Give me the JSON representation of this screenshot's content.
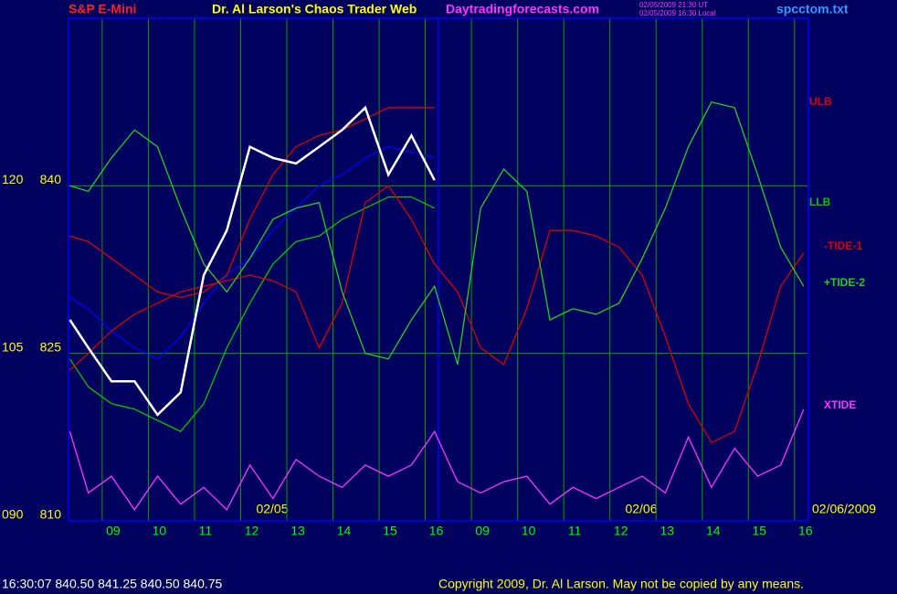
{
  "chart_data": {
    "type": "line",
    "title": "Dr. Al Larson's Chaos Trader Web",
    "instrument": "S&P E-Mini",
    "site": "Daytradingforecasts.com",
    "timestamp_ut": "02/05/2009 21:30 UT",
    "timestamp_local": "02/05/2009 16:30 Local",
    "file": "spcctom.txt",
    "quote_line": "16:30:07  840.50 841.25 840.50 840.75",
    "copyright": "Copyright 2009, Dr. Al Larson. May not be copied by any means.",
    "date_labels": [
      "02/05",
      "02/06",
      "02/06/2009"
    ],
    "background": "#00005e",
    "axis_color": "#0000ff",
    "grid_color": "#00a000",
    "tick_color": "#ffff00",
    "xtick_color": "#00ff00",
    "grid": true,
    "x": [
      0.1,
      0.5,
      1,
      1.5,
      2,
      2.5,
      3,
      3.5,
      4,
      4.5,
      5,
      5.5,
      6,
      6.5,
      7,
      7.5,
      8,
      8.5,
      9,
      9.5,
      10,
      10.5,
      11,
      11.5,
      12,
      12.5,
      13,
      13.5,
      14,
      14.5,
      15,
      15.5,
      16
    ],
    "xlim": [
      0.07,
      16.1
    ],
    "xticks": [
      {
        "value": 0.8,
        "label": "09"
      },
      {
        "value": 1.8,
        "label": "10"
      },
      {
        "value": 2.8,
        "label": "11"
      },
      {
        "value": 3.8,
        "label": "12"
      },
      {
        "value": 4.8,
        "label": "13"
      },
      {
        "value": 5.8,
        "label": "14"
      },
      {
        "value": 6.8,
        "label": "15"
      },
      {
        "value": 7.8,
        "label": "16"
      },
      {
        "value": 8.8,
        "label": "09"
      },
      {
        "value": 9.8,
        "label": "10"
      },
      {
        "value": 10.8,
        "label": "11"
      },
      {
        "value": 11.8,
        "label": "12"
      },
      {
        "value": 12.8,
        "label": "13"
      },
      {
        "value": 13.8,
        "label": "14"
      },
      {
        "value": 14.8,
        "label": "15"
      },
      {
        "value": 15.8,
        "label": "16"
      }
    ],
    "ylim": [
      810,
      855
    ],
    "yticks": [
      810,
      825,
      840
    ],
    "y2lim": [
      90,
      135
    ],
    "y2ticks": [
      {
        "value": 90,
        "label": "090"
      },
      105,
      120
    ],
    "series": [
      {
        "color": "#0000ff",
        "values": [
          830,
          829,
          827,
          825.5,
          824.5,
          826.5,
          829.5,
          832,
          833.5,
          836,
          838,
          840,
          841,
          842.5,
          843.5,
          843,
          842.5,
          null,
          null,
          null,
          null,
          null,
          null,
          null,
          null,
          null,
          null,
          null,
          null,
          null,
          null,
          null,
          null
        ]
      },
      {
        "name": "ULB",
        "color": "#e00000",
        "values": [
          835.5,
          835,
          833.5,
          832,
          830.5,
          830,
          830.5,
          832,
          837,
          841,
          843.5,
          844.5,
          845,
          846,
          847,
          847,
          847,
          null,
          null,
          null,
          null,
          null,
          null,
          null,
          null,
          null,
          null,
          null,
          null,
          null,
          null,
          null,
          null
        ]
      },
      {
        "name": "LLB",
        "color": "#00c800",
        "values": [
          824.5,
          822,
          820.5,
          820,
          819,
          818,
          820.5,
          825.5,
          829.5,
          833,
          835,
          835.5,
          837,
          838,
          839,
          839,
          838,
          null,
          null,
          null,
          null,
          null,
          null,
          null,
          null,
          null,
          null,
          null,
          null,
          null,
          null,
          null,
          null
        ]
      },
      {
        "name": "-TIDE-1",
        "color": "#dd0000",
        "values": [
          823.5,
          825,
          827,
          828.5,
          829.5,
          830.5,
          831,
          831.5,
          832,
          831.5,
          830.5,
          825.5,
          829.5,
          838.5,
          840,
          837,
          833,
          830.5,
          825.5,
          824,
          829,
          836,
          836,
          835.5,
          834.5,
          832,
          826.5,
          820.5,
          817,
          818,
          824,
          831,
          834
        ]
      },
      {
        "name": "+TIDE-2",
        "color": "#22d022",
        "values": [
          840,
          839.5,
          842.5,
          845,
          843.5,
          838,
          833,
          830.5,
          833.5,
          837,
          838,
          838.5,
          830.5,
          825,
          824.5,
          828,
          831,
          824,
          838,
          841.5,
          839.5,
          828,
          829,
          828.5,
          829.5,
          833.5,
          838,
          843.5,
          847.5,
          847,
          841,
          834.5,
          831
        ]
      },
      {
        "name": "XTIDE",
        "color": "#ff33ff",
        "values": [
          818,
          812.5,
          814,
          811,
          814,
          811.5,
          813,
          811,
          815,
          812,
          815.5,
          814,
          813,
          815,
          814,
          815,
          818,
          813.5,
          812.5,
          813.5,
          814,
          811.5,
          813,
          812,
          813,
          814,
          812.5,
          817.5,
          813,
          816.5,
          814,
          815,
          820
        ]
      },
      {
        "color": "#ffffff",
        "values": [
          828,
          825.5,
          822.5,
          822.5,
          819.5,
          821.5,
          832,
          836,
          843.5,
          842.5,
          842,
          843.5,
          845,
          847,
          841,
          844.5,
          840.5,
          null,
          null,
          null,
          null,
          null,
          null,
          null,
          null,
          null,
          null,
          null,
          null,
          null,
          null,
          null,
          null
        ]
      }
    ]
  }
}
